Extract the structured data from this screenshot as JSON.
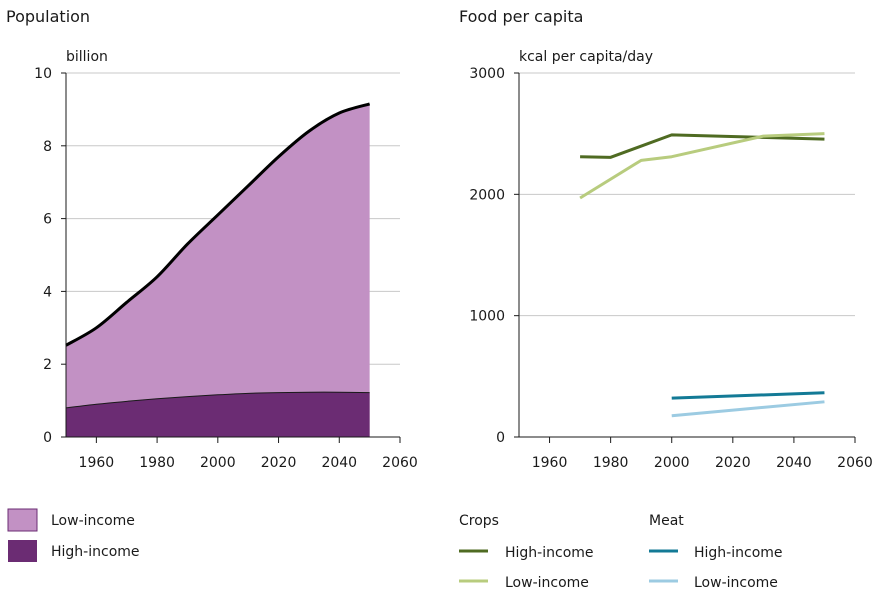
{
  "chart_data": [
    {
      "type": "area",
      "title": "Population",
      "ylabel": "billion",
      "xlabel": "",
      "xlim": [
        1950,
        2060
      ],
      "ylim": [
        0,
        10
      ],
      "x_ticks": [
        1960,
        1980,
        2000,
        2020,
        2040,
        2060
      ],
      "y_ticks": [
        0,
        2,
        4,
        6,
        8,
        10
      ],
      "x_tick_labels": [
        "1960",
        "1980",
        "2000",
        "2020",
        "2040",
        "2060"
      ],
      "y_tick_labels": [
        "0",
        "2",
        "4",
        "6",
        "8",
        "10"
      ],
      "stacked": true,
      "grid": "horizontal",
      "x": [
        1950,
        1960,
        1970,
        1980,
        1990,
        2000,
        2010,
        2020,
        2030,
        2040,
        2050
      ],
      "series": [
        {
          "name": "High-income",
          "color": "#6b2c73",
          "values": [
            0.8,
            0.9,
            0.98,
            1.05,
            1.11,
            1.16,
            1.2,
            1.22,
            1.23,
            1.23,
            1.22
          ]
        },
        {
          "name": "Low-income",
          "color": "#c291c4",
          "values": [
            1.72,
            2.1,
            2.72,
            3.35,
            4.19,
            4.94,
            5.7,
            6.48,
            7.17,
            7.67,
            7.93
          ]
        }
      ],
      "total_line_color": "#000000",
      "legend": [
        {
          "label": "Low-income",
          "color": "#c291c4"
        },
        {
          "label": "High-income",
          "color": "#6b2c73"
        }
      ],
      "legend_placement": "bottom-left"
    },
    {
      "type": "line",
      "title": "Food per capita",
      "ylabel": "kcal per capita/day",
      "xlabel": "",
      "xlim": [
        1950,
        2060
      ],
      "ylim": [
        0,
        3000
      ],
      "x_ticks": [
        1960,
        1980,
        2000,
        2020,
        2040,
        2060
      ],
      "y_ticks": [
        0,
        1000,
        2000,
        3000
      ],
      "x_tick_labels": [
        "1960",
        "1980",
        "2000",
        "2020",
        "2040",
        "2060"
      ],
      "y_tick_labels": [
        "0",
        "1000",
        "2000",
        "3000"
      ],
      "grid": "horizontal",
      "series": [
        {
          "group": "Crops",
          "name": "High-income",
          "color": "#4f6b22",
          "x": [
            1970,
            1980,
            2000,
            2050
          ],
          "values": [
            2310,
            2305,
            2490,
            2455
          ]
        },
        {
          "group": "Crops",
          "name": "Low-income",
          "color": "#b8cc7e",
          "x": [
            1970,
            1990,
            2000,
            2030,
            2050
          ],
          "values": [
            1970,
            2280,
            2310,
            2480,
            2500
          ]
        },
        {
          "group": "Meat",
          "name": "High-income",
          "color": "#137a96",
          "x": [
            2000,
            2050
          ],
          "values": [
            320,
            365
          ]
        },
        {
          "group": "Meat",
          "name": "Low-income",
          "color": "#9ccbe2",
          "x": [
            2000,
            2050
          ],
          "values": [
            175,
            290
          ]
        }
      ],
      "legend_groups": [
        "Crops",
        "Meat"
      ],
      "legend_placement": "bottom"
    }
  ]
}
